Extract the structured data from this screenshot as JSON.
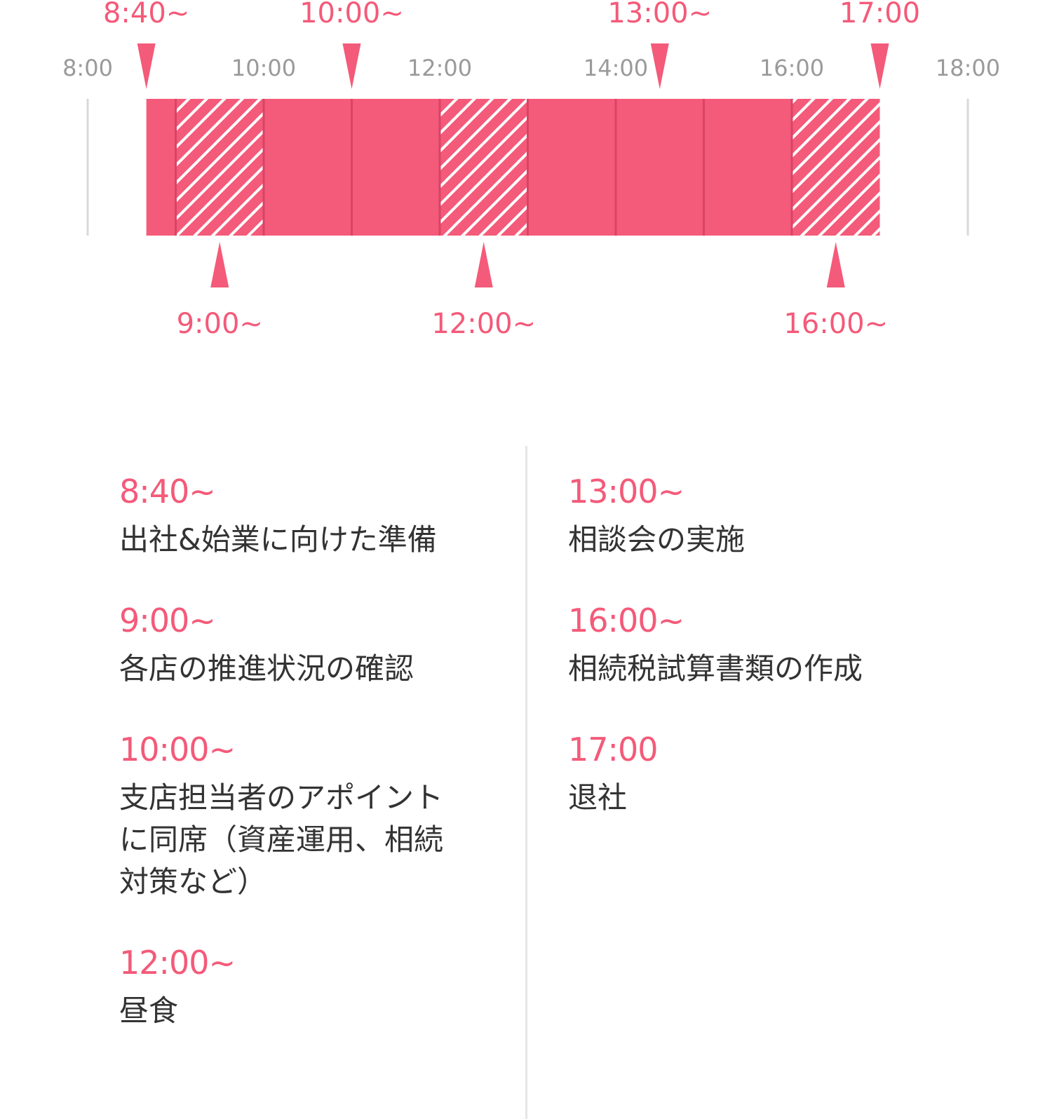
{
  "chart_data": {
    "type": "timeline",
    "axis": {
      "start": 8,
      "end": 18,
      "tick_labels": [
        "8:00",
        "10:00",
        "12:00",
        "14:00",
        "16:00",
        "18:00"
      ],
      "tick_values": [
        8,
        10,
        12,
        14,
        16,
        18
      ]
    },
    "segments": [
      {
        "start": 8.6667,
        "end": 9,
        "pattern": "solid"
      },
      {
        "start": 9,
        "end": 10,
        "pattern": "hatched"
      },
      {
        "start": 10,
        "end": 11,
        "pattern": "solid"
      },
      {
        "start": 11,
        "end": 12,
        "pattern": "solid"
      },
      {
        "start": 12,
        "end": 13,
        "pattern": "hatched"
      },
      {
        "start": 13,
        "end": 14,
        "pattern": "solid"
      },
      {
        "start": 14,
        "end": 15,
        "pattern": "solid"
      },
      {
        "start": 15,
        "end": 16,
        "pattern": "solid"
      },
      {
        "start": 16,
        "end": 17,
        "pattern": "hatched"
      }
    ],
    "markers_top": [
      {
        "time": 8.6667,
        "label": "8:40~"
      },
      {
        "time": 11,
        "label": "10:00~"
      },
      {
        "time": 14.5,
        "label": "13:00~"
      },
      {
        "time": 17,
        "label": "17:00"
      }
    ],
    "markers_bottom": [
      {
        "time": 9.5,
        "label": "9:00~"
      },
      {
        "time": 12.5,
        "label": "12:00~"
      },
      {
        "time": 16.5,
        "label": "16:00~"
      }
    ],
    "colors": {
      "bar": "#f45a79",
      "bar_divider": "#d84466",
      "hatch": "#ffffff",
      "axis_line": "#d8d8d8",
      "tick_text": "#9a9a9a"
    }
  },
  "schedule": {
    "left": [
      {
        "time": "8:40~",
        "desc": [
          "出社&始業に向けた準備"
        ]
      },
      {
        "time": "9:00~",
        "desc": [
          "各店の推進状況の確認"
        ]
      },
      {
        "time": "10:00~",
        "desc": [
          "支店担当者のアポイント",
          "に同席（資産運用、相続",
          "対策など）"
        ]
      },
      {
        "time": "12:00~",
        "desc": [
          "昼食"
        ]
      }
    ],
    "right": [
      {
        "time": "13:00~",
        "desc": [
          "相談会の実施"
        ]
      },
      {
        "time": "16:00~",
        "desc": [
          "相続税試算書類の作成"
        ]
      },
      {
        "time": "17:00",
        "desc": [
          "退社"
        ]
      }
    ]
  }
}
